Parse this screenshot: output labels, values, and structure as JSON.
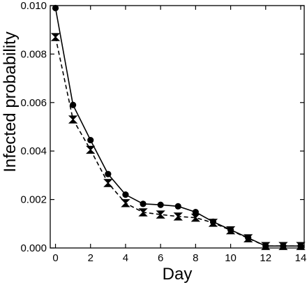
{
  "chart_data": {
    "type": "line",
    "xlabel": "Day",
    "ylabel": "Infected probability",
    "xlim": [
      -0.3,
      14.2
    ],
    "ylim": [
      0,
      0.01
    ],
    "xticks": [
      "0",
      "2",
      "4",
      "6",
      "8",
      "10",
      "12",
      "14"
    ],
    "yticks": [
      "0.000",
      "0.002",
      "0.004",
      "0.006",
      "0.008",
      "0.010"
    ],
    "grid": false,
    "legend": "none",
    "series": [
      {
        "line_style": "solid",
        "marker": "circle",
        "color": "#000000",
        "x": [
          0,
          1,
          2,
          3,
          4,
          5,
          6,
          7,
          8,
          9,
          10,
          11,
          12,
          13,
          14
        ],
        "y": [
          0.0099,
          0.0059,
          0.00445,
          0.00305,
          0.0022,
          0.00182,
          0.00178,
          0.00172,
          0.00148,
          0.00108,
          0.00075,
          0.00042,
          8e-05,
          8e-05,
          8e-05
        ]
      },
      {
        "line_style": "dashed",
        "marker": "bowtie",
        "color": "#000000",
        "x": [
          0,
          1,
          2,
          3,
          4,
          5,
          6,
          7,
          8,
          9,
          10,
          11,
          12,
          13,
          14
        ],
        "y": [
          0.0087,
          0.0053,
          0.00405,
          0.00268,
          0.00185,
          0.00147,
          0.00138,
          0.0013,
          0.00125,
          0.00104,
          0.00073,
          0.0004,
          8e-05,
          8e-05,
          8e-05
        ]
      }
    ]
  }
}
